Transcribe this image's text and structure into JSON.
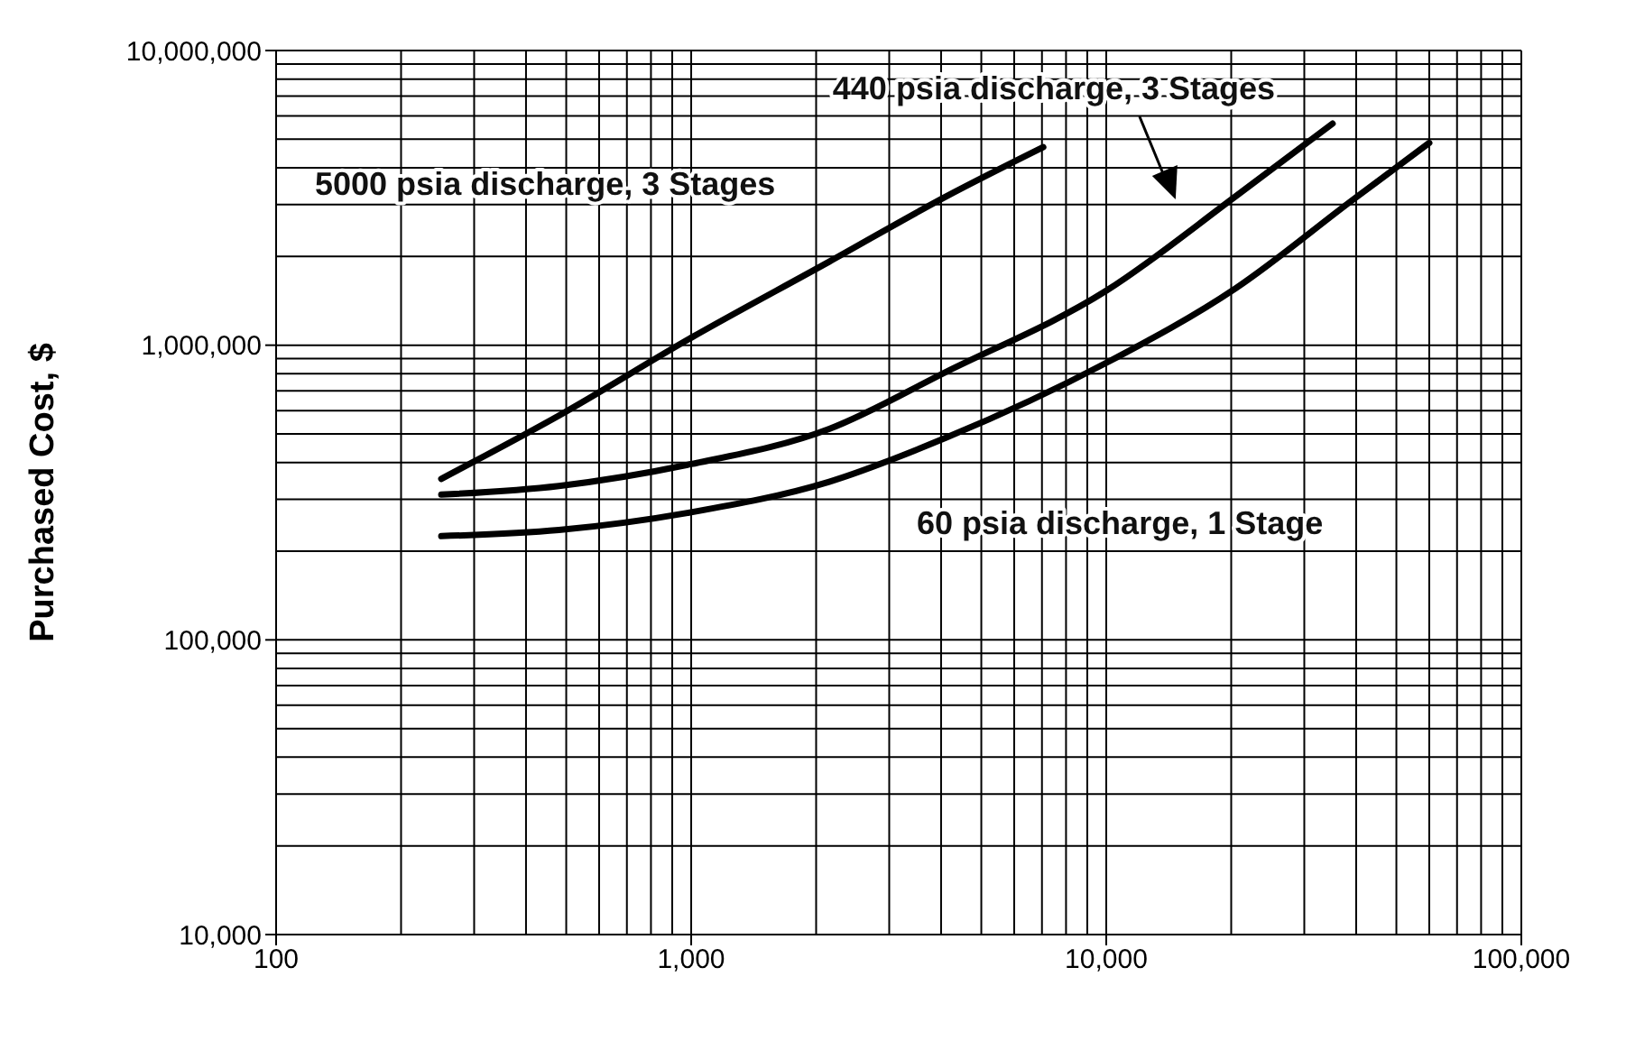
{
  "chart_data": {
    "type": "line",
    "ylabel": "Purchased Cost, $",
    "log": "xy",
    "grid": true,
    "marker": "none",
    "line_style": "solid",
    "xlim": [
      100,
      100000
    ],
    "xticks": [
      {
        "value": 100,
        "label": "100"
      },
      {
        "value": 1000,
        "label": "1,000"
      },
      {
        "value": 10000,
        "label": "10,000"
      },
      {
        "value": 100000,
        "label": "100,000"
      }
    ],
    "ylim": [
      10000,
      10000000
    ],
    "yticks": [
      {
        "value": 10000,
        "label": "10,000"
      },
      {
        "value": 100000,
        "label": "100,000"
      },
      {
        "value": 1000000,
        "label": "1,000,000"
      },
      {
        "value": 10000000,
        "label": "10,000,000"
      }
    ],
    "series": [
      {
        "name": "5000 psia discharge, 3 Stages",
        "color": "#000000",
        "x": [
          250,
          480,
          1000,
          2150,
          4120,
          7050
        ],
        "values": [
          352000,
          577000,
          1060000,
          1920000,
          3200000,
          4700000
        ]
      },
      {
        "name": "440 psia discharge, 3 Stages",
        "color": "#000000",
        "x": [
          250,
          480,
          1000,
          2150,
          4120,
          10000,
          20500,
          35100
        ],
        "values": [
          311000,
          333000,
          395000,
          520000,
          813000,
          1530000,
          3200000,
          5650000
        ]
      },
      {
        "name": "60 psia discharge, 1 Stage",
        "color": "#000000",
        "x": [
          250,
          480,
          1000,
          2150,
          4120,
          10000,
          20500,
          39200,
          60000
        ],
        "values": [
          225000,
          236000,
          271000,
          344000,
          486000,
          871000,
          1560000,
          3110000,
          4860000
        ]
      }
    ]
  }
}
